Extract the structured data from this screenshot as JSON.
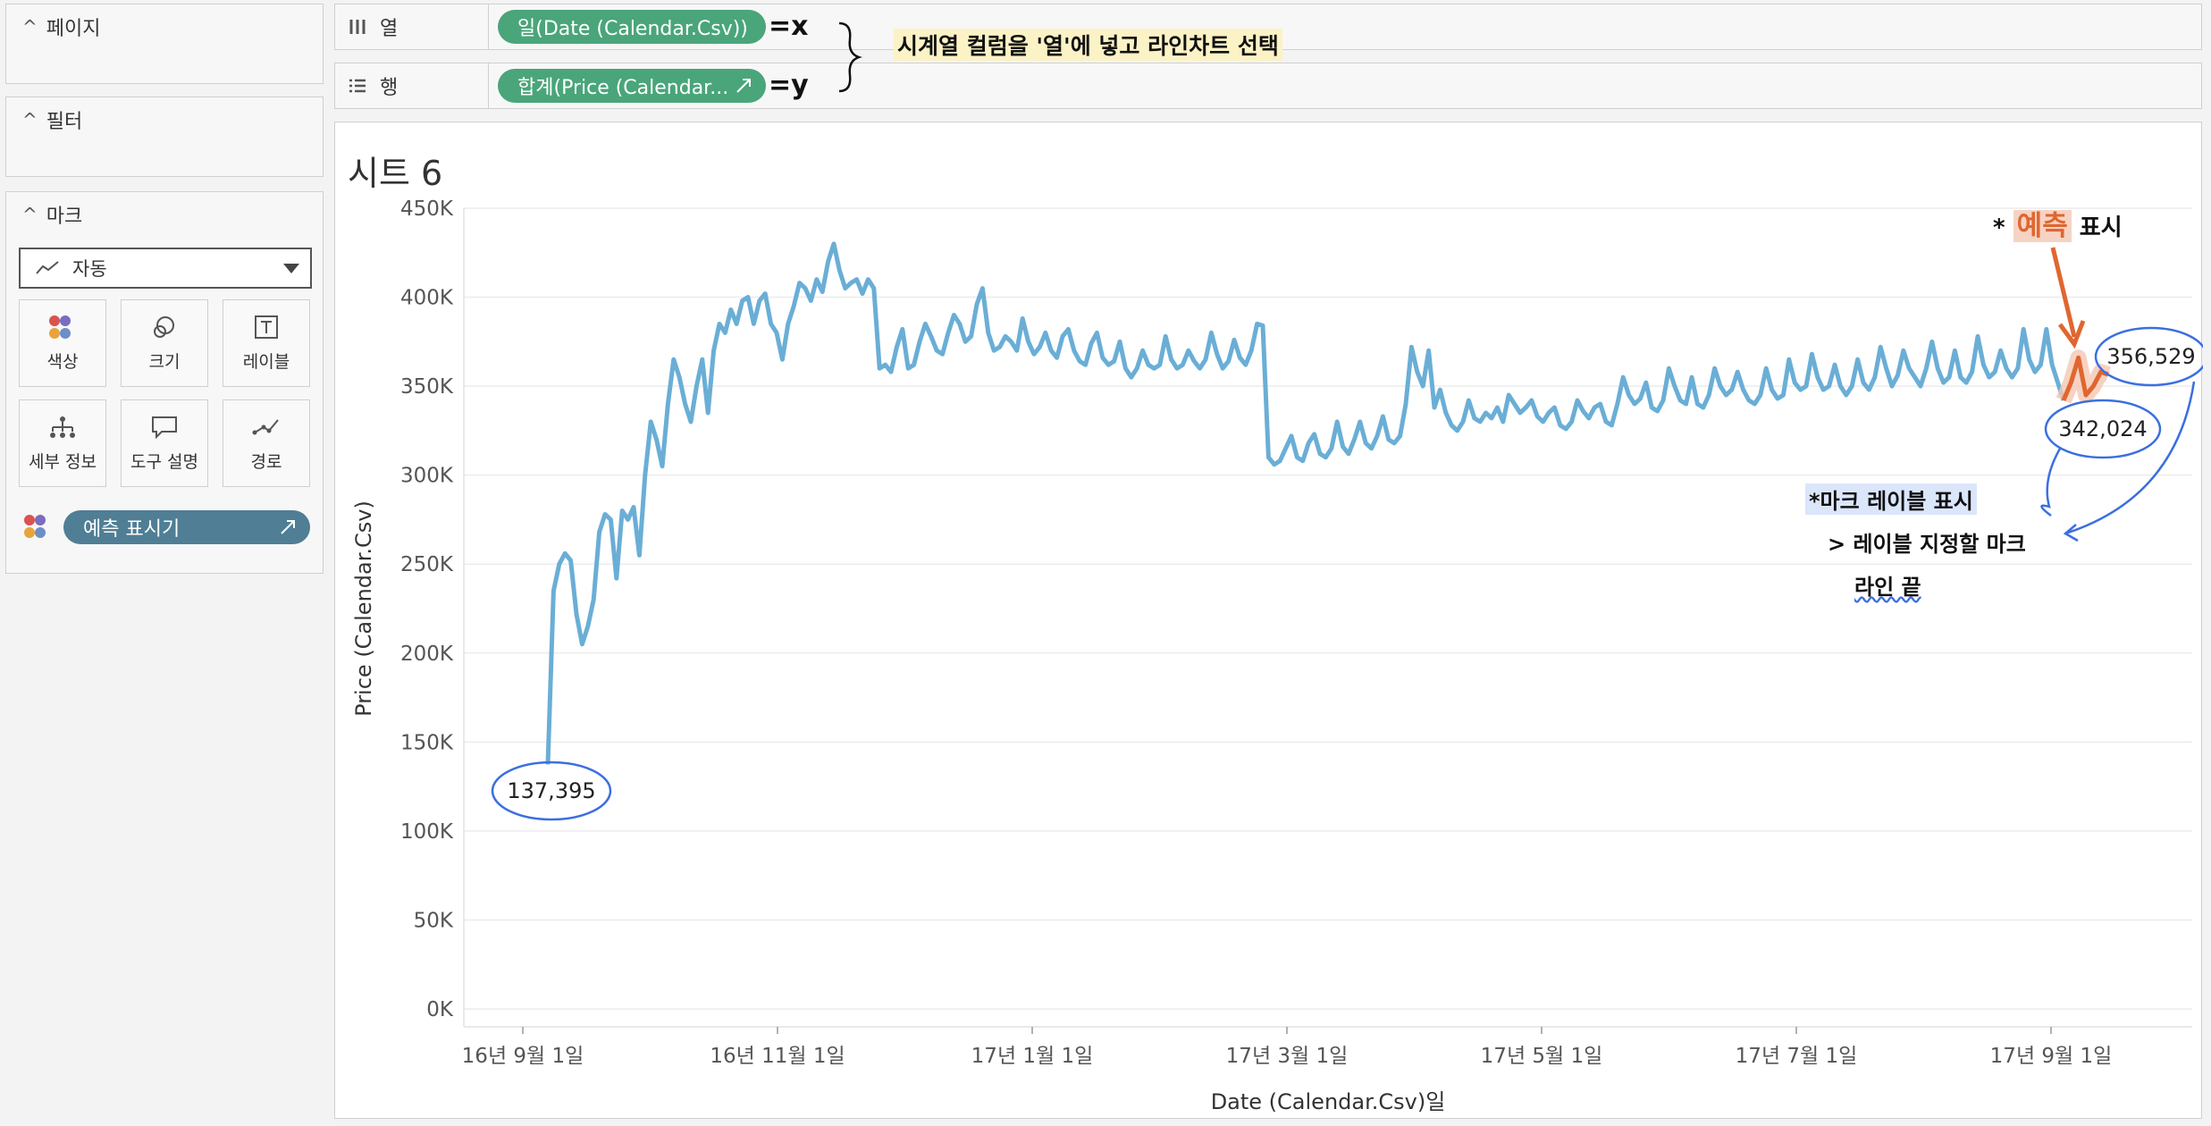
{
  "panels": {
    "pages": {
      "title": "페이지"
    },
    "filters": {
      "title": "필터"
    },
    "marks": {
      "title": "마크",
      "mark_type": "자동",
      "buttons": [
        {
          "label": "색상",
          "icon": "color-icon"
        },
        {
          "label": "크기",
          "icon": "size-icon"
        },
        {
          "label": "레이블",
          "icon": "label-icon"
        },
        {
          "label": "세부 정보",
          "icon": "detail-icon"
        },
        {
          "label": "도구 설명",
          "icon": "tooltip-icon"
        },
        {
          "label": "경로",
          "icon": "path-icon"
        }
      ],
      "pill": "예측 표시기"
    }
  },
  "shelves": {
    "columns": {
      "label": "열",
      "pill": "일(Date (Calendar.Csv))"
    },
    "rows": {
      "label": "행",
      "pill": "합계(Price (Calendar..."
    }
  },
  "annotations": {
    "x_eq": "=x",
    "y_eq": "=y",
    "shelf_note": "시계열 컬럼을 '열'에 넣고 라인차트 선택",
    "forecast_star": "*",
    "forecast_word": "예측",
    "forecast_rest": "표시",
    "label_note_1": "*마크 레이블 표시",
    "label_note_2": "> 레이블 지정할 마크",
    "label_note_3": "라인 끝"
  },
  "colors": {
    "line": "#6aaed6",
    "forecast": "#e0662f",
    "pill_green": "#4aa57a",
    "pill_blue": "#4f7e95",
    "annotation_blue": "#3b6fe0"
  },
  "sheet": {
    "title": "시트 6"
  },
  "chart_data": {
    "type": "line",
    "title": "시트 6",
    "xlabel": "Date (Calendar.Csv)일",
    "ylabel": "Price (Calendar.Csv)",
    "ylim": [
      0,
      450000
    ],
    "y_ticks": [
      "0K",
      "50K",
      "100K",
      "150K",
      "200K",
      "250K",
      "300K",
      "350K",
      "400K",
      "450K"
    ],
    "x_ticks": [
      "16년 9월 1일",
      "16년 11월 1일",
      "17년 1월 1일",
      "17년 3월 1일",
      "17년 5월 1일",
      "17년 7월 1일",
      "17년 9월 1일"
    ],
    "grid": true,
    "series": [
      {
        "values": [
          137395,
          235000,
          250000,
          256000,
          252000,
          222000,
          205000,
          215000,
          230000,
          268000,
          278000,
          275000,
          242000,
          280000,
          275000,
          282000,
          255000,
          300000,
          330000,
          320000,
          305000,
          340000,
          365000,
          355000,
          340000,
          330000,
          350000,
          365000,
          335000,
          370000,
          385000,
          380000,
          393000,
          385000,
          398000,
          400000,
          385000,
          398000,
          402000,
          385000,
          380000,
          365000,
          385000,
          395000,
          408000,
          405000,
          398000,
          410000,
          403000,
          420000,
          430000,
          415000,
          405000,
          408000,
          410000,
          402000,
          410000,
          405000,
          360000,
          362000,
          358000,
          372000,
          382000,
          360000,
          362000,
          375000,
          385000,
          378000,
          370000,
          368000,
          380000,
          390000,
          385000,
          375000,
          378000,
          396000,
          405000,
          380000,
          370000,
          372000,
          378000,
          375000,
          370000,
          388000,
          375000,
          368000,
          372000,
          380000,
          370000,
          366000,
          378000,
          382000,
          370000,
          364000,
          362000,
          374000,
          380000,
          366000,
          362000,
          364000,
          375000,
          360000,
          355000,
          360000,
          370000,
          362000,
          360000,
          362000,
          378000,
          365000,
          360000,
          362000,
          370000,
          364000,
          360000,
          365000,
          380000,
          368000,
          360000,
          364000,
          376000,
          366000,
          362000,
          370000,
          385000,
          384000,
          310000,
          306000,
          308000,
          315000,
          322000,
          310000,
          308000,
          318000,
          323000,
          312000,
          310000,
          315000,
          330000,
          316000,
          312000,
          320000,
          330000,
          318000,
          315000,
          322000,
          333000,
          320000,
          318000,
          322000,
          340000,
          372000,
          358000,
          350000,
          370000,
          338000,
          348000,
          335000,
          328000,
          325000,
          330000,
          342000,
          332000,
          330000,
          335000,
          332000,
          338000,
          330000,
          345000,
          340000,
          335000,
          338000,
          342000,
          333000,
          330000,
          335000,
          338000,
          328000,
          326000,
          330000,
          342000,
          336000,
          332000,
          338000,
          340000,
          330000,
          328000,
          340000,
          355000,
          345000,
          340000,
          343000,
          352000,
          338000,
          336000,
          342000,
          360000,
          350000,
          342000,
          340000,
          355000,
          340000,
          338000,
          345000,
          360000,
          350000,
          345000,
          348000,
          358000,
          348000,
          342000,
          340000,
          345000,
          360000,
          348000,
          343000,
          345000,
          365000,
          352000,
          348000,
          350000,
          368000,
          355000,
          348000,
          350000,
          362000,
          350000,
          345000,
          350000,
          365000,
          352000,
          348000,
          355000,
          372000,
          360000,
          350000,
          356000,
          370000,
          360000,
          355000,
          350000,
          360000,
          375000,
          360000,
          352000,
          355000,
          370000,
          355000,
          352000,
          358000,
          378000,
          362000,
          355000,
          358000,
          370000,
          360000,
          355000,
          360000,
          382000,
          365000,
          358000,
          362000,
          382000,
          362000,
          352000,
          342024
        ]
      },
      {
        "name": "예측",
        "values": [
          342024,
          352000,
          366000,
          345000,
          350000,
          358000,
          356529
        ]
      }
    ],
    "data_labels": [
      "137,395",
      "342,024",
      "356,529"
    ]
  }
}
